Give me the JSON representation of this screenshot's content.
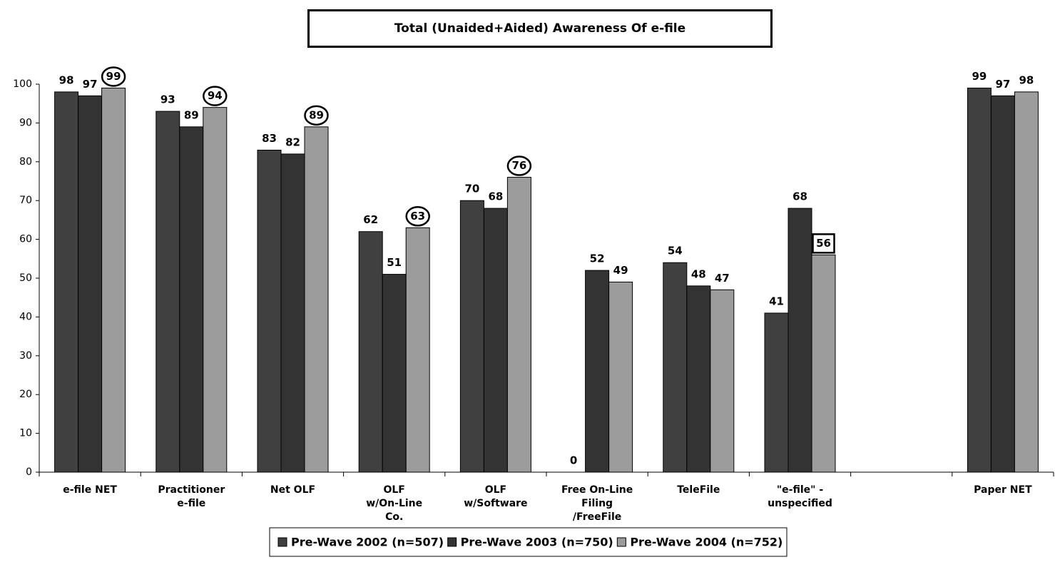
{
  "chart_data": {
    "type": "bar",
    "title": "Total (Unaided+Aided) Awareness Of e-file",
    "categories": [
      "e-file NET",
      "Practitioner\ne-file",
      "Net OLF",
      "OLF\nw/On-Line\nCo.",
      "OLF\nw/Software",
      "Free On-Line\nFiling\n/FreeFile",
      "TeleFile",
      "\"e-file\" -\nunspecified",
      null,
      "Paper NET"
    ],
    "series": [
      {
        "name": "Pre-Wave 2002 (n=507)",
        "color": "#404040",
        "values": [
          98,
          93,
          83,
          62,
          70,
          0,
          54,
          41,
          null,
          99
        ]
      },
      {
        "name": "Pre-Wave 2003 (n=750)",
        "color": "#333333",
        "values": [
          97,
          89,
          82,
          51,
          68,
          52,
          48,
          68,
          null,
          97
        ]
      },
      {
        "name": "Pre-Wave 2004 (n=752)",
        "color": "#9c9c9c",
        "values": [
          99,
          94,
          89,
          63,
          76,
          49,
          47,
          56,
          null,
          98
        ],
        "highlight": [
          "circle",
          "circle",
          "circle",
          "circle",
          "circle",
          null,
          null,
          "box",
          null,
          null
        ]
      }
    ],
    "ylim": [
      0,
      100
    ],
    "yticks": [
      0,
      10,
      20,
      30,
      40,
      50,
      60,
      70,
      80,
      90,
      100
    ],
    "legend": "bottom",
    "grid": false
  }
}
